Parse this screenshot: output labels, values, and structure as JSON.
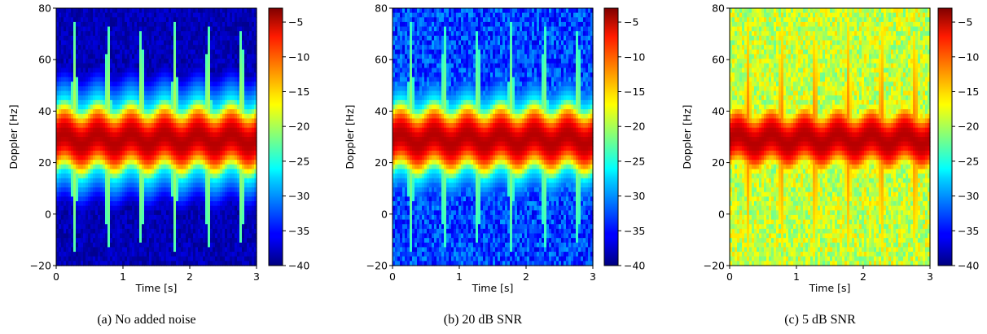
{
  "colorbar": {
    "min": -40,
    "max": -3,
    "ticks": [
      -5,
      -10,
      -15,
      -20,
      -25,
      -30,
      -35,
      -40
    ]
  },
  "colormap": "jet",
  "chart_data": [
    {
      "type": "heatmap",
      "caption": "(a) No added noise",
      "xlabel": "Time [s]",
      "ylabel": "Doppler [Hz]",
      "xlim": [
        0,
        3
      ],
      "ylim": [
        -20,
        80
      ],
      "xticks": [
        0,
        1,
        2,
        3
      ],
      "yticks": [
        -20,
        0,
        20,
        40,
        60,
        80
      ],
      "colorbar_label": "",
      "noise_floor_db": -38,
      "torso_band": {
        "center_hz": 29,
        "level_db": -5
      },
      "stride_period_s": 0.5,
      "limb_swings": {
        "upper_hz": 75,
        "lower_hz": -15,
        "level_db": -24
      }
    },
    {
      "type": "heatmap",
      "caption": "(b) 20 dB SNR",
      "xlabel": "Time [s]",
      "ylabel": "Doppler [Hz]",
      "xlim": [
        0,
        3
      ],
      "ylim": [
        -20,
        80
      ],
      "xticks": [
        0,
        1,
        2,
        3
      ],
      "yticks": [
        -20,
        0,
        20,
        40,
        60,
        80
      ],
      "colorbar_label": "",
      "noise_floor_db": -33,
      "torso_band": {
        "center_hz": 29,
        "level_db": -5
      },
      "stride_period_s": 0.5,
      "limb_swings": {
        "upper_hz": 75,
        "lower_hz": -15,
        "level_db": -25
      }
    },
    {
      "type": "heatmap",
      "caption": "(c) 5 dB SNR",
      "xlabel": "Time [s]",
      "ylabel": "Doppler [Hz]",
      "xlim": [
        0,
        3
      ],
      "ylim": [
        -20,
        80
      ],
      "xticks": [
        0,
        1,
        2,
        3
      ],
      "yticks": [
        -20,
        0,
        20,
        40,
        60,
        80
      ],
      "colorbar_label": "",
      "noise_floor_db": -19,
      "torso_band": {
        "center_hz": 29,
        "level_db": -5
      },
      "stride_period_s": 0.5,
      "limb_swings": {
        "upper_hz": 75,
        "lower_hz": -15,
        "level_db": -17
      }
    }
  ]
}
